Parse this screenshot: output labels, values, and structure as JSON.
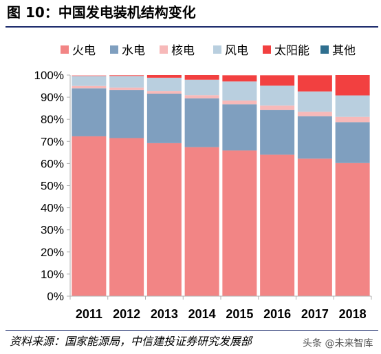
{
  "figure": {
    "title": "图 10：中国发电装机结构变化",
    "source": "资料来源：国家能源局，中信建投证券研究发展部",
    "watermark": "头条 @未来智库"
  },
  "colors": {
    "fire": "#f28585",
    "hydro": "#7f9fbf",
    "nuclear": "#f7b9b9",
    "wind": "#b9cfdf",
    "solar": "#f24040",
    "other": "#2f6f8f",
    "title_rule": "#1b2a6b",
    "axis": "#b0b0b0"
  },
  "chart_data": {
    "type": "bar",
    "stacked": true,
    "categories": [
      "2011",
      "2012",
      "2013",
      "2014",
      "2015",
      "2016",
      "2017",
      "2018"
    ],
    "ylim": [
      0,
      100
    ],
    "yticks": [
      "0%",
      "10%",
      "20%",
      "30%",
      "40%",
      "50%",
      "60%",
      "70%",
      "80%",
      "90%",
      "100%"
    ],
    "legend_position": "top",
    "series": [
      {
        "name": "火电",
        "color_key": "fire",
        "values": [
          72.3,
          71.5,
          69.2,
          67.4,
          65.9,
          64.0,
          62.2,
          60.2
        ]
      },
      {
        "name": "水电",
        "color_key": "hydro",
        "values": [
          21.7,
          21.7,
          22.4,
          22.1,
          20.9,
          20.2,
          19.2,
          18.5
        ]
      },
      {
        "name": "核电",
        "color_key": "nuclear",
        "values": [
          1.1,
          1.1,
          1.2,
          1.4,
          1.7,
          2.0,
          2.0,
          2.4
        ]
      },
      {
        "name": "风电",
        "color_key": "wind",
        "values": [
          4.5,
          5.3,
          6.0,
          7.0,
          8.6,
          9.0,
          9.2,
          9.7
        ]
      },
      {
        "name": "太阳能",
        "color_key": "solar",
        "values": [
          0.2,
          0.3,
          1.2,
          2.1,
          2.8,
          4.7,
          7.3,
          9.2
        ]
      },
      {
        "name": "其他",
        "color_key": "other",
        "values": [
          0.0,
          0.0,
          0.0,
          0.0,
          0.0,
          0.0,
          0.0,
          0.0
        ]
      }
    ]
  }
}
